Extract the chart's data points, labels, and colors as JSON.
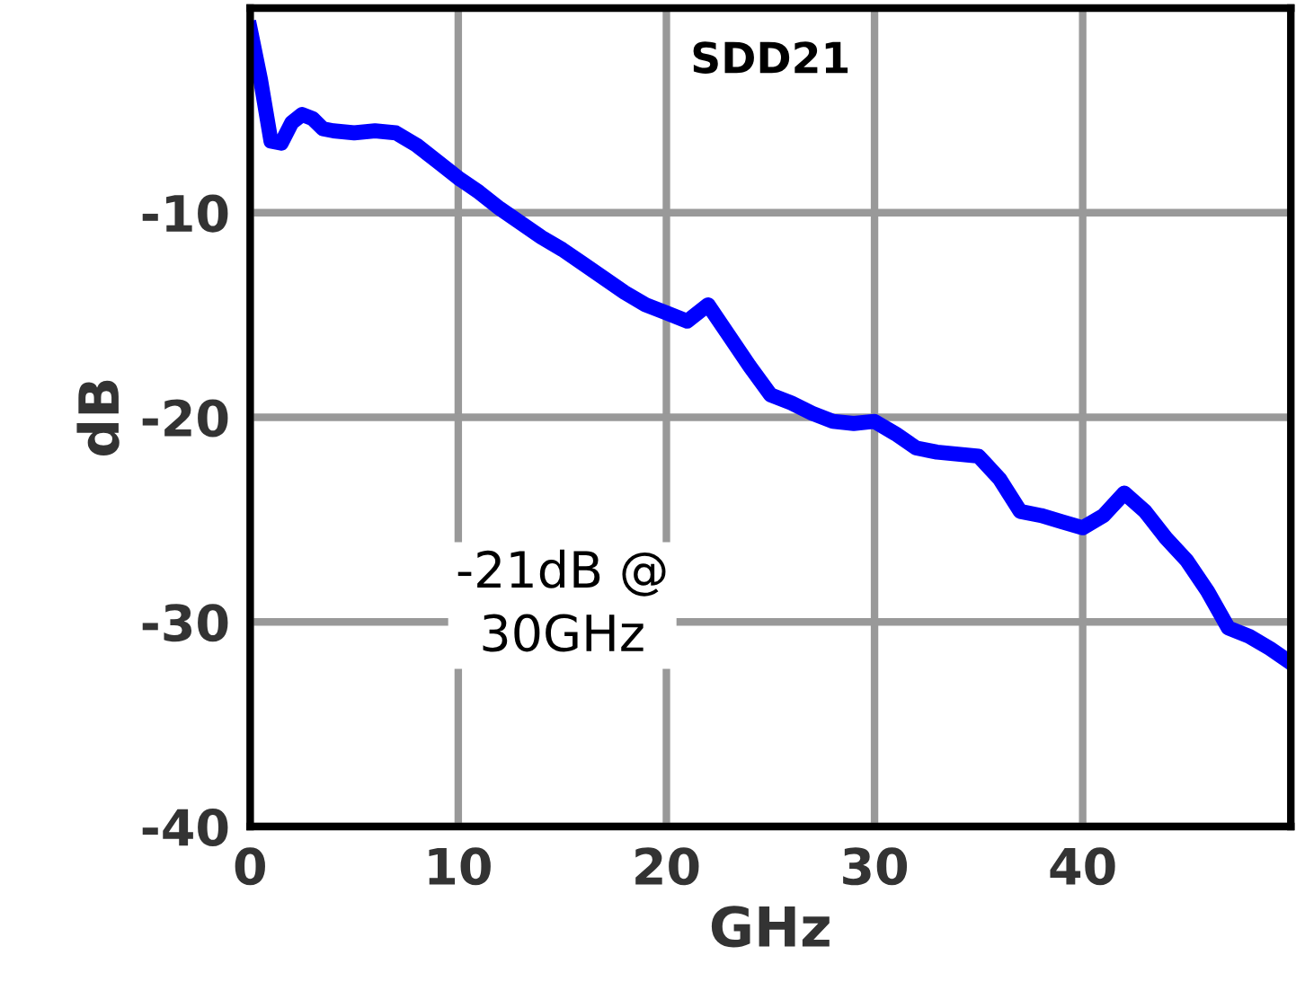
{
  "chart_data": {
    "type": "line",
    "title": "SDD21",
    "xlabel": "GHz",
    "ylabel": "dB",
    "annotations": [
      "-21dB @\n30GHz"
    ],
    "x": [
      0,
      0.5,
      1,
      1.5,
      2,
      2.5,
      3,
      3.5,
      4,
      5,
      6,
      7,
      8,
      9,
      10,
      11,
      12,
      13,
      14,
      15,
      16,
      17,
      18,
      19,
      20,
      21,
      22,
      23,
      24,
      25,
      26,
      27,
      28,
      29,
      30,
      31,
      32,
      33,
      34,
      35,
      36,
      37,
      38,
      39,
      40,
      41,
      42,
      43,
      44,
      45,
      46,
      47,
      48,
      49,
      50
    ],
    "series": [
      {
        "color": "#0000ff",
        "values": [
          -1,
          -3.5,
          -6.5,
          -6.6,
          -5.6,
          -5.2,
          -5.4,
          -5.9,
          -6,
          -6.1,
          -6,
          -6.1,
          -6.7,
          -7.5,
          -8.3,
          -9,
          -9.8,
          -10.5,
          -11.2,
          -11.8,
          -12.5,
          -13.2,
          -13.9,
          -14.5,
          -14.9,
          -15.3,
          -14.5,
          -16,
          -17.5,
          -18.9,
          -19.3,
          -19.8,
          -20.2,
          -20.3,
          -20.2,
          -20.8,
          -21.5,
          -21.7,
          -21.8,
          -21.9,
          -23,
          -24.6,
          -24.8,
          -25.1,
          -25.4,
          -24.8,
          -23.7,
          -24.6,
          -25.9,
          -27,
          -28.5,
          -30.3,
          -30.7,
          -31.3,
          -32
        ]
      }
    ],
    "xlim": [
      0,
      50
    ],
    "ylim": [
      -40,
      0
    ],
    "xticks": [
      0,
      10,
      20,
      30,
      40
    ],
    "yticks": [
      -40,
      -30,
      -20,
      -10
    ],
    "grid": true
  }
}
